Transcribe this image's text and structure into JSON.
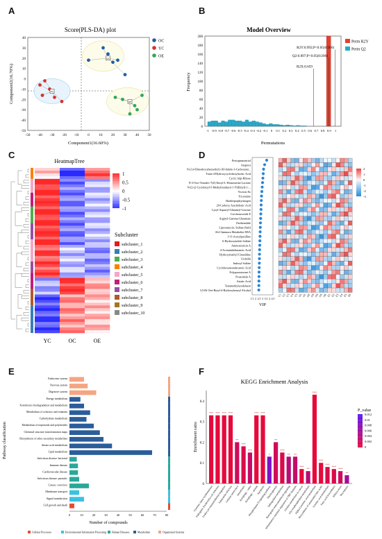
{
  "panels": {
    "A": {
      "letter": "A",
      "title": "Score(PLS-DA) plot",
      "xlabel": "Component1(16.60%)",
      "ylabel": "Component2(16.70%)",
      "xticks": [
        "-50",
        "-40",
        "-30",
        "-20",
        "-10",
        "0",
        "10",
        "20",
        "30",
        "40",
        "50"
      ],
      "yticks": [
        "40",
        "30",
        "20",
        "10",
        "0",
        "-10",
        "-20",
        "-30",
        "-40",
        "-50"
      ],
      "legend": [
        "OC",
        "YC",
        "OE"
      ],
      "colors": {
        "OC": "#1f5fa8",
        "YC": "#d6322e",
        "OE": "#2ea85a"
      },
      "centroid_labels": [
        "YC",
        "OC",
        "OE"
      ]
    },
    "B": {
      "letter": "B",
      "title": "Model Overview",
      "xlabel": "Permutations",
      "ylabel": "Frequency",
      "xticks": [
        "-1",
        "-0.9",
        "-0.8",
        "-0.7",
        "-0.6",
        "-0.5",
        "-0.4",
        "-0.3",
        "-0.2",
        "-0.1",
        "0",
        "0.1",
        "0.2",
        "0.3",
        "0.4",
        "0.5",
        "0.6",
        "0.7",
        "0.8",
        "0.9",
        "1"
      ],
      "yticks": [
        "200",
        "180",
        "160",
        "140",
        "120",
        "100",
        "80",
        "60",
        "40",
        "20",
        "0"
      ],
      "legend": [
        "Perm R2Y",
        "Perm Q2"
      ],
      "annotations": [
        "R2Y:0.992;P<0.05(0/200)",
        "Q2:0.897;P<0.05(0/200)",
        "R2X:0.659"
      ]
    },
    "C": {
      "letter": "C",
      "title": "HeatmapTree",
      "columns": [
        "YC",
        "OC",
        "OE"
      ],
      "scale_ticks": [
        "1",
        "0.5",
        "0",
        "-0.5",
        "-1"
      ],
      "subcluster_title": "Subcluster",
      "subclusters": [
        "subcluster_1",
        "subcluster_2",
        "subcluster_3",
        "subcluster_4",
        "subcluster_5",
        "subcluster_6",
        "subcluster_7",
        "subcluster_8",
        "subcluster_9",
        "subcluster_10"
      ],
      "subcluster_colors": [
        "#e41a1c",
        "#377eb8",
        "#4daf4a",
        "#ff7f00",
        "#f4a6c8",
        "#c51b7d",
        "#984ea3",
        "#b15928",
        "#a6761d",
        "#888888"
      ]
    },
    "D": {
      "letter": "D",
      "xlabel": "VIP",
      "xticks": [
        "1.5",
        "2",
        "2.5",
        "3",
        "3.5",
        "4",
        "4.5"
      ],
      "scale_ticks": [
        "2",
        "1",
        "0",
        "-1",
        "-2",
        "-3"
      ],
      "metabolites": [
        "Protopanaxatriol",
        "Ataprost",
        "N-(3,4-Dimethoxybenzethyl)-1H-Indole-3-Carboxami...",
        "Trans-4-Hydroxycyclohexylacetic Acid",
        "Cyclic Adp-Ribose",
        "N-3-Oxo-Tetradec-7(Z)-Enoyl-L-Homoserine Lactone",
        "N-[2-(2-Cyclobutyl-5-Methylimidazol-1-Yl)Ethyl]-1-...",
        "Viceron Eo",
        "Tricetarine",
        "Hardeeporphyrinogen",
        "20-Carboxy Arachidonic Acid",
        "Lysyl-Aspartyl-Glutamyl-Leucine",
        "Corchorusoside E",
        "Arginyl-Gamma-Glutamate",
        "Parthenolide",
        "Lipoxamycin, Sulfate (Salt)",
        "Ab-Chminaca Metabolite M5A",
        "1'-O-Acetylpaxilline",
        "6-Hydroxyindole Sulfate",
        "Ammonioricin A",
        "4-Acetamidobutanoic Acid",
        "Hydroxymethyl Cimetidine",
        "Urobilin",
        "Indoxyl Sulfate",
        "Cyclohexaneundecanoic Acid",
        "Polyporusterone A",
        "Pouzolside A",
        "Asiatic Acid",
        "Tetramethylurodeluein",
        "3,5-Di-Tert-Butyl-4-Hydroxybenzyl Alcohol"
      ],
      "vip": [
        3.6,
        3.3,
        3.15,
        3.1,
        3.05,
        3.0,
        2.95,
        2.9,
        2.85,
        2.82,
        2.8,
        2.78,
        2.75,
        2.73,
        2.7,
        2.68,
        2.66,
        2.64,
        2.62,
        2.6,
        2.58,
        2.56,
        2.55,
        2.54,
        2.52,
        2.5,
        2.49,
        2.48,
        2.47,
        2.46
      ],
      "sample_labels": [
        "Y1",
        "Y2",
        "Y3",
        "Y4",
        "Y5",
        "Y6",
        "O1",
        "O2",
        "O3",
        "O4",
        "O5",
        "O6",
        "E1",
        "E2",
        "E3",
        "E4",
        "E5",
        "E6"
      ]
    },
    "E": {
      "letter": "E",
      "ylabel": "Pathway classification",
      "xlabel": "Number of compounds",
      "xticks": [
        "0",
        "10",
        "20",
        "30",
        "40",
        "50",
        "60",
        "70",
        "80"
      ],
      "pathways": [
        "Endocrine system",
        "Nervous system",
        "Digestive system",
        "Energy metabolism",
        "Xenobiotics biodegradation and metabolism",
        "Metabolism of cofactors and vitamins",
        "Carbohydrate metabolism",
        "Metabolism of terpenoids and polyketides",
        "Chemical structure transformation maps",
        "Biosynthesis of other secondary metabolites",
        "Amino acid metabolism",
        "Lipid metabolism",
        "Infectious disease: bacterial",
        "Immune disease",
        "Cardiovascular disease",
        "Infectious disease: parasitic",
        "Cancer: overview",
        "Membrane transport",
        "Signal transduction",
        "Cell growth and death"
      ],
      "counts": [
        12,
        15,
        22,
        9,
        12,
        17,
        14,
        20,
        25,
        28,
        35,
        68,
        6,
        7,
        7,
        8,
        16,
        8,
        12,
        4
      ],
      "groups": [
        "org",
        "org",
        "org",
        "met",
        "met",
        "met",
        "met",
        "met",
        "met",
        "met",
        "met",
        "met",
        "hum",
        "hum",
        "hum",
        "hum",
        "hum",
        "env",
        "env",
        "cel"
      ],
      "group_colors": {
        "org": "#f4a582",
        "met": "#2b5d9a",
        "hum": "#2aa89a",
        "env": "#3ec1e0",
        "cel": "#e64b35"
      },
      "legend": [
        "Cellular Processes",
        "Environmental Information Processing",
        "Human Diseases",
        "Metabolism",
        "Organismal Systems"
      ]
    },
    "F": {
      "letter": "F",
      "title": "KEGG Enrichment Analysis",
      "ylabel": "Enrichment ratio",
      "yticks": [
        "0.4",
        "0.3",
        "0.2",
        "0.1",
        "0"
      ],
      "legend_title": "P_value",
      "legend_ticks": [
        "0.012",
        "0.01",
        "0.008",
        "0.006",
        "0.004",
        "0.002",
        "0"
      ],
      "pathways": [
        "Systemic lupus erythematosus",
        "Pathogenic Escherichia coli infection",
        "Leukocyte transendothelial migration",
        "Salmonella infection",
        "Cellular senescence",
        "Amoebiasis",
        "Autophagy - other",
        "Autophagy - animal",
        "Apoptosis",
        "Phospholipase D signaling pathway",
        "Thermogenesis",
        "Sphingolipid metabolism",
        "Retrograde endocannabinoid signaling",
        "Inflammatory mediator regulation of TRP channels",
        "Choline metabolism in cancer",
        "Glycerophospholipid metabolism",
        "Alpha-Linolenic acid metabolism",
        "Biosynthesis of unsaturated fatty acids",
        "Linoleic acid metabolism",
        "Fatty acid biosynthesis",
        "Efferocytosis",
        "Necroptosis"
      ],
      "ratios": [
        0.33,
        0.33,
        0.33,
        0.33,
        0.2,
        0.18,
        0.15,
        0.33,
        0.33,
        0.13,
        0.2,
        0.15,
        0.13,
        0.13,
        0.07,
        0.06,
        0.43,
        0.1,
        0.08,
        0.07,
        0.06,
        0.04
      ],
      "stars": [
        "***",
        "***",
        "***",
        "***",
        "**",
        "***",
        "***",
        "***",
        "***",
        "*",
        "**",
        "***",
        "**",
        "**",
        "***",
        "**",
        "***",
        "***",
        "***",
        "***",
        "***",
        "**"
      ],
      "pvals": [
        0.0,
        0.0,
        0.0,
        0.0,
        0.002,
        0.001,
        0.003,
        0.0,
        0.0,
        0.009,
        0.002,
        0.001,
        0.004,
        0.003,
        0.0,
        0.004,
        0.0,
        0.0,
        0.001,
        0.001,
        0.002,
        0.006
      ]
    }
  }
}
